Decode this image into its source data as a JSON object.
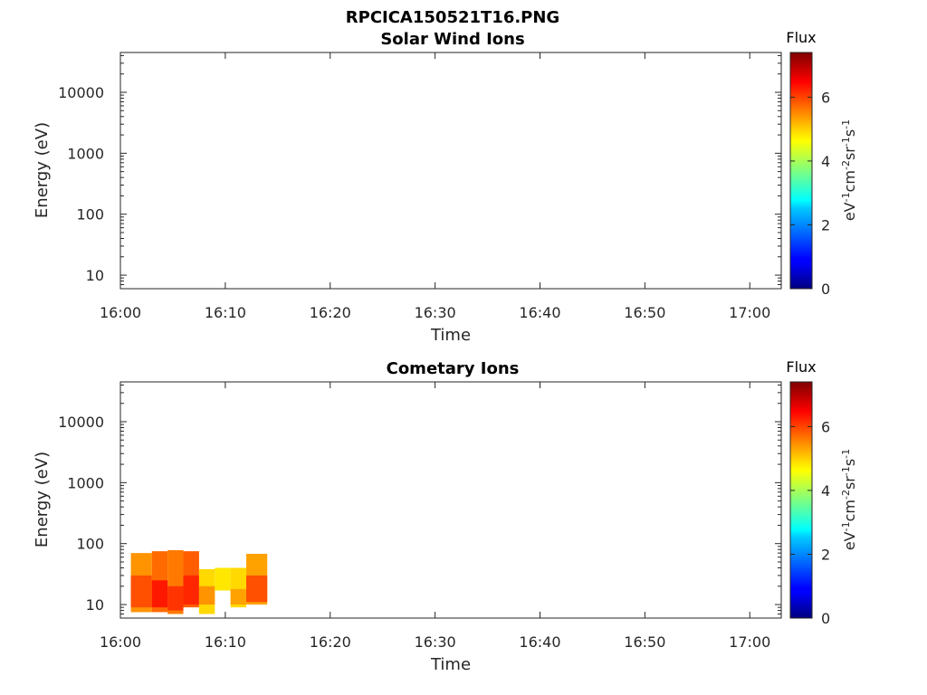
{
  "figure_title": "RPCICA150521T16.PNG",
  "chart_data": [
    {
      "type": "heatmap",
      "title": "Solar Wind Ions",
      "xlabel": "Time",
      "ylabel": "Energy (eV)",
      "y_scale": "log",
      "xlim": [
        "16:00",
        "17:03"
      ],
      "ylim": [
        6,
        45000
      ],
      "xticks": [
        "16:00",
        "16:10",
        "16:20",
        "16:30",
        "16:40",
        "16:50",
        "17:00"
      ],
      "yticks": [
        "10",
        "100",
        "1000",
        "10000"
      ],
      "colorbar": {
        "title": "Flux",
        "label": "eV-1cm-2sr-1s-1",
        "range": [
          0,
          7.4
        ],
        "ticks": [
          "0",
          "2",
          "4",
          "6"
        ],
        "colormap": "jet"
      },
      "cells": []
    },
    {
      "type": "heatmap",
      "title": "Cometary Ions",
      "xlabel": "Time",
      "ylabel": "Energy (eV)",
      "y_scale": "log",
      "xlim": [
        "16:00",
        "17:03"
      ],
      "ylim": [
        6,
        45000
      ],
      "xticks": [
        "16:00",
        "16:10",
        "16:20",
        "16:30",
        "16:40",
        "16:50",
        "17:00"
      ],
      "yticks": [
        "10",
        "100",
        "1000",
        "10000"
      ],
      "colorbar": {
        "title": "Flux",
        "label": "eV-1cm-2sr-1s-1",
        "range": [
          0,
          7.4
        ],
        "ticks": [
          "0",
          "2",
          "4",
          "6"
        ],
        "colormap": "jet"
      },
      "cells": [
        {
          "t0": "16:01",
          "t1": "16:03",
          "e0": 7.5,
          "e1": 70,
          "flux": 5.4
        },
        {
          "t0": "16:01",
          "t1": "16:03",
          "e0": 9,
          "e1": 30,
          "flux": 5.9
        },
        {
          "t0": "16:03",
          "t1": "16:04:30",
          "e0": 7.5,
          "e1": 75,
          "flux": 5.7
        },
        {
          "t0": "16:03",
          "t1": "16:04:30",
          "e0": 9,
          "e1": 25,
          "flux": 6.3
        },
        {
          "t0": "16:04:30",
          "t1": "16:06",
          "e0": 7,
          "e1": 78,
          "flux": 5.6
        },
        {
          "t0": "16:04:30",
          "t1": "16:06",
          "e0": 8,
          "e1": 20,
          "flux": 6.1
        },
        {
          "t0": "16:06",
          "t1": "16:07:30",
          "e0": 9,
          "e1": 75,
          "flux": 5.8
        },
        {
          "t0": "16:06",
          "t1": "16:07:30",
          "e0": 10,
          "e1": 30,
          "flux": 6.2
        },
        {
          "t0": "16:07:30",
          "t1": "16:09",
          "e0": 7,
          "e1": 38,
          "flux": 4.9
        },
        {
          "t0": "16:07:30",
          "t1": "16:09",
          "e0": 10,
          "e1": 20,
          "flux": 5.4
        },
        {
          "t0": "16:09",
          "t1": "16:10:30",
          "e0": 17,
          "e1": 40,
          "flux": 4.8
        },
        {
          "t0": "16:10:30",
          "t1": "16:12",
          "e0": 9,
          "e1": 40,
          "flux": 4.9
        },
        {
          "t0": "16:10:30",
          "t1": "16:12",
          "e0": 10,
          "e1": 18,
          "flux": 5.3
        },
        {
          "t0": "16:12",
          "t1": "16:14",
          "e0": 10,
          "e1": 68,
          "flux": 5.3
        },
        {
          "t0": "16:12",
          "t1": "16:14",
          "e0": 11,
          "e1": 30,
          "flux": 5.9
        }
      ]
    }
  ]
}
